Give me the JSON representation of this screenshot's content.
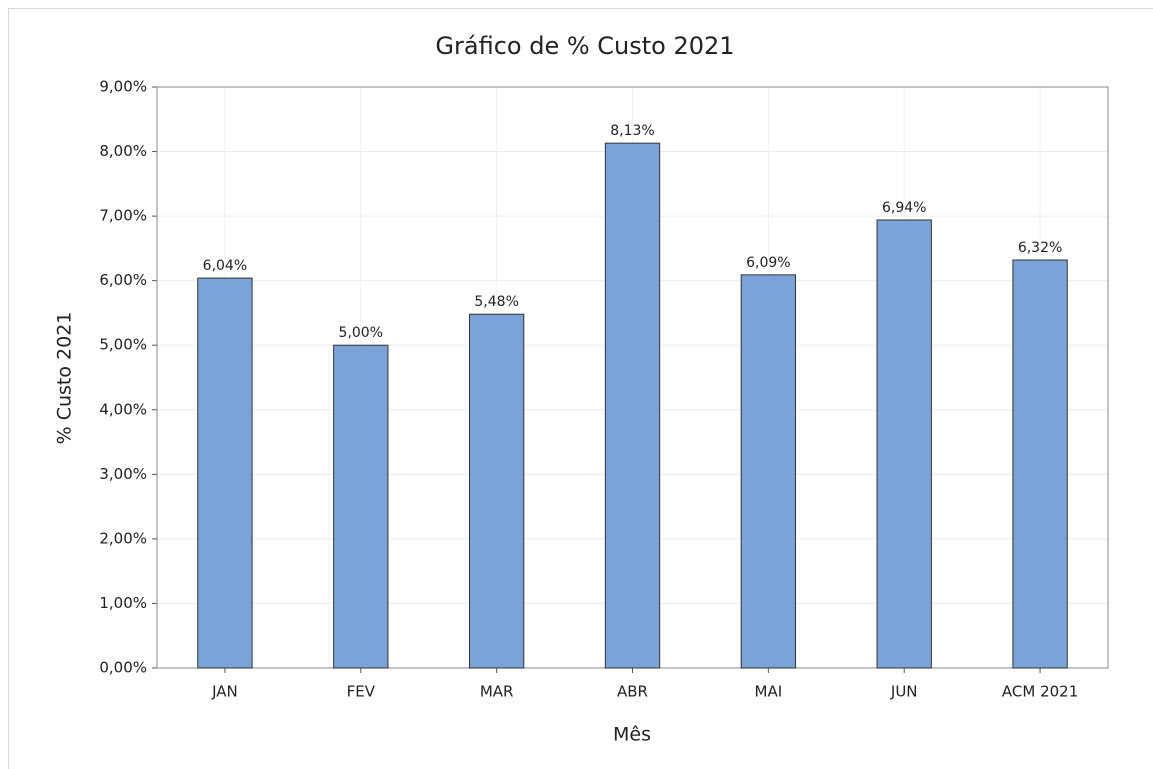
{
  "chart_data": {
    "type": "bar",
    "title": "Gráfico de % Custo 2021",
    "xlabel": "Mês",
    "ylabel": "% Custo 2021",
    "categories": [
      "JAN",
      "FEV",
      "MAR",
      "ABR",
      "MAI",
      "JUN",
      "ACM 2021"
    ],
    "values": [
      6.04,
      5.0,
      5.48,
      8.13,
      6.09,
      6.94,
      6.32
    ],
    "value_labels": [
      "6,04%",
      "5,00%",
      "5,48%",
      "8,13%",
      "6,09%",
      "6,94%",
      "6,32%"
    ],
    "color": "#7ba3d8",
    "ylim": [
      0,
      9
    ],
    "yticks": [
      {
        "value": 0,
        "label": "0,00%"
      },
      {
        "value": 1,
        "label": "1,00%"
      },
      {
        "value": 2,
        "label": "2,00%"
      },
      {
        "value": 3,
        "label": "3,00%"
      },
      {
        "value": 4,
        "label": "4,00%"
      },
      {
        "value": 5,
        "label": "5,00%"
      },
      {
        "value": 6,
        "label": "6,00%"
      },
      {
        "value": 7,
        "label": "7,00%"
      },
      {
        "value": 8,
        "label": "8,00%"
      },
      {
        "value": 9,
        "label": "9,00%"
      }
    ],
    "grid": true
  }
}
